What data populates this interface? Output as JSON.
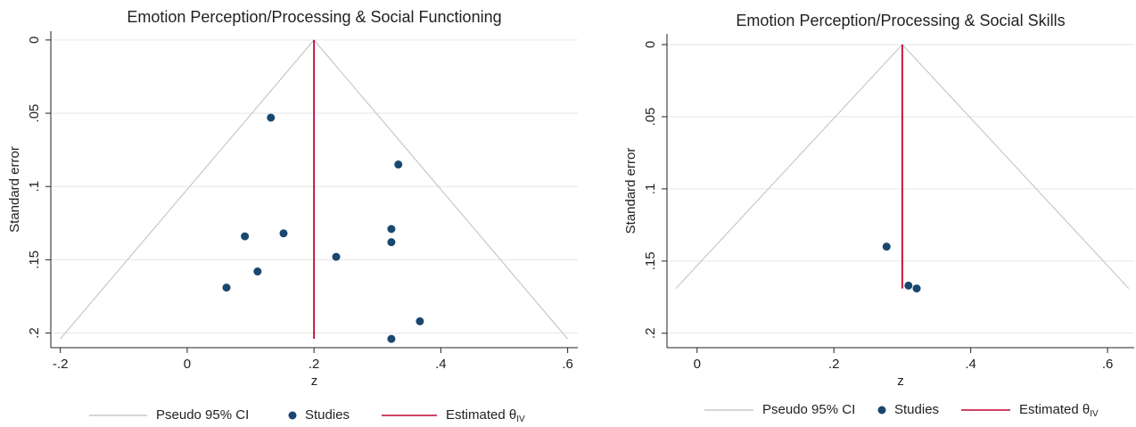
{
  "chart_data": [
    {
      "type": "scatter",
      "title": "Emotion Perception/Processing & Social Functioning",
      "x_label": "z",
      "y_label": "Standard error",
      "y_reversed": true,
      "grid": true,
      "xlim": [
        -0.215,
        0.616
      ],
      "ylim": [
        -0.006,
        0.21
      ],
      "xticks": [
        {
          "value": -0.2,
          "label": "-.2"
        },
        0,
        {
          "value": 0.2,
          "label": ".2"
        },
        {
          "value": 0.4,
          "label": ".4"
        },
        {
          "value": 0.6,
          "label": ".6"
        }
      ],
      "yticks": [
        0,
        {
          "value": 0.05,
          "label": ".05"
        },
        {
          "value": 0.1,
          "label": ".1"
        },
        {
          "value": 0.15,
          "label": ".15"
        },
        {
          "value": 0.2,
          "label": ".2"
        }
      ],
      "series": [
        {
          "name": "Pseudo 95% CI",
          "kind": "line",
          "color": "#c8c8c8",
          "x": [
            -0.2,
            0.2,
            0.6
          ],
          "values": [
            0.204,
            0,
            0.204
          ]
        },
        {
          "name": "Studies",
          "kind": "points",
          "color": "#1a476f",
          "x": [
            0.132,
            0.333,
            0.322,
            0.322,
            0.152,
            0.091,
            0.235,
            0.111,
            0.062,
            0.367,
            0.322
          ],
          "values": [
            0.053,
            0.085,
            0.129,
            0.138,
            0.132,
            0.134,
            0.148,
            0.158,
            0.169,
            0.192,
            0.204
          ]
        },
        {
          "name": "Estimated θ",
          "name_sub": "IV",
          "kind": "line",
          "color": "#c10534",
          "x": [
            0.2,
            0.2
          ],
          "values": [
            0,
            0.204
          ]
        }
      ]
    },
    {
      "type": "scatter",
      "title": "Emotion Perception/Processing & Social Skills",
      "x_label": "z",
      "y_label": "Standard error",
      "y_reversed": true,
      "grid": true,
      "xlim": [
        -0.044,
        0.639
      ],
      "ylim": [
        -0.0074,
        0.21
      ],
      "xticks": [
        0,
        {
          "value": 0.2,
          "label": ".2"
        },
        {
          "value": 0.4,
          "label": ".4"
        },
        {
          "value": 0.6,
          "label": ".6"
        }
      ],
      "yticks": [
        0,
        {
          "value": 0.05,
          "label": ".05"
        },
        {
          "value": 0.1,
          "label": ".1"
        },
        {
          "value": 0.15,
          "label": ".15"
        },
        {
          "value": 0.2,
          "label": ".2"
        }
      ],
      "series": [
        {
          "name": "Pseudo 95% CI",
          "kind": "line",
          "color": "#c8c8c8",
          "x": [
            -0.031,
            0.3,
            0.631
          ],
          "values": [
            0.169,
            0,
            0.169
          ]
        },
        {
          "name": "Studies",
          "kind": "points",
          "color": "#1a476f",
          "x": [
            0.277,
            0.309,
            0.321
          ],
          "values": [
            0.14,
            0.167,
            0.169
          ]
        },
        {
          "name": "Estimated θ",
          "name_sub": "IV",
          "kind": "line",
          "color": "#c10534",
          "x": [
            0.3,
            0.3
          ],
          "values": [
            0,
            0.169
          ]
        }
      ]
    }
  ]
}
